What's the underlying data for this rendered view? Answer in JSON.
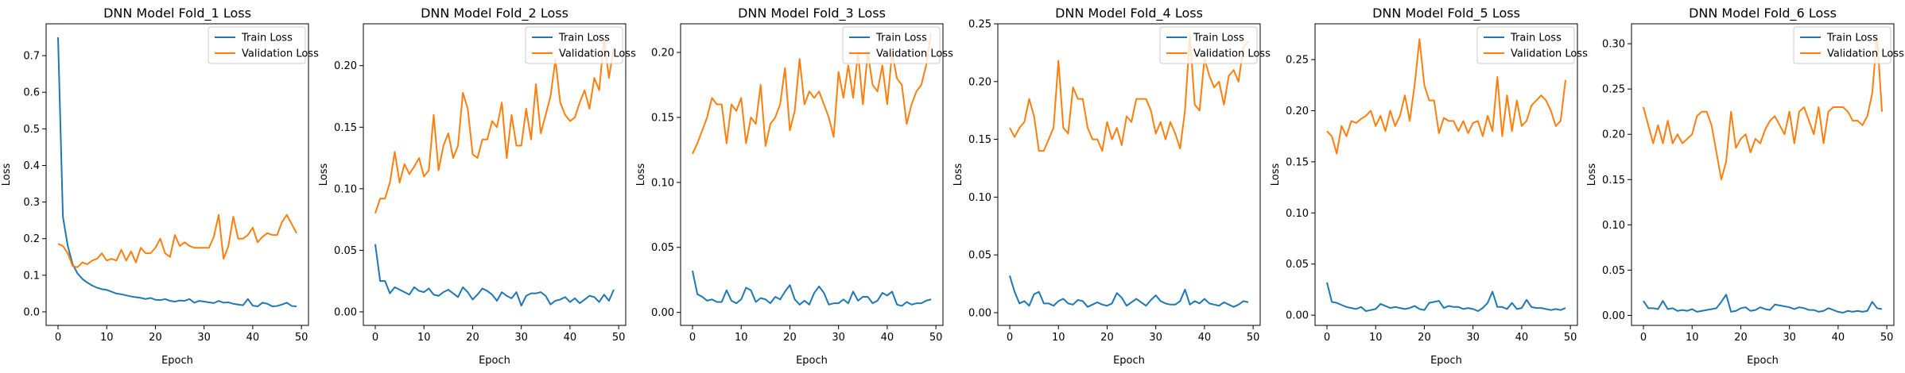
{
  "figure": {
    "background": "#ffffff"
  },
  "colors": {
    "train": "#1f77b4",
    "validation": "#ff7f0e",
    "axes": "#000000"
  },
  "chart_data": [
    {
      "type": "line",
      "title": "DNN Model Fold_1 Loss",
      "xlabel": "Epoch",
      "ylabel": "Loss",
      "xlim": [
        -2.45,
        51.45
      ],
      "ylim": [
        -0.037,
        0.787
      ],
      "xticks": [
        0,
        10,
        20,
        30,
        40,
        50
      ],
      "yticks": [
        0.0,
        0.1,
        0.2,
        0.3,
        0.4,
        0.5,
        0.6,
        0.7
      ],
      "ytick_labels": [
        "0.0",
        "0.1",
        "0.2",
        "0.3",
        "0.4",
        "0.5",
        "0.6",
        "0.7"
      ],
      "legend": "top-right",
      "grid": false,
      "series": [
        {
          "name": "Train Loss",
          "color": "#1f77b4",
          "values": [
            0.75,
            0.26,
            0.18,
            0.13,
            0.105,
            0.09,
            0.08,
            0.072,
            0.066,
            0.062,
            0.06,
            0.055,
            0.05,
            0.048,
            0.045,
            0.042,
            0.04,
            0.038,
            0.035,
            0.038,
            0.033,
            0.032,
            0.035,
            0.03,
            0.028,
            0.031,
            0.03,
            0.035,
            0.025,
            0.03,
            0.028,
            0.026,
            0.024,
            0.03,
            0.025,
            0.026,
            0.022,
            0.02,
            0.018,
            0.035,
            0.017,
            0.015,
            0.025,
            0.022,
            0.015,
            0.016,
            0.02,
            0.025,
            0.016,
            0.015
          ]
        },
        {
          "name": "Validation Loss",
          "color": "#ff7f0e",
          "values": [
            0.186,
            0.18,
            0.16,
            0.125,
            0.122,
            0.135,
            0.13,
            0.14,
            0.145,
            0.16,
            0.14,
            0.145,
            0.14,
            0.17,
            0.14,
            0.165,
            0.135,
            0.175,
            0.16,
            0.16,
            0.175,
            0.2,
            0.16,
            0.15,
            0.21,
            0.18,
            0.19,
            0.18,
            0.175,
            0.175,
            0.175,
            0.175,
            0.205,
            0.265,
            0.145,
            0.18,
            0.26,
            0.2,
            0.2,
            0.21,
            0.23,
            0.19,
            0.205,
            0.215,
            0.21,
            0.21,
            0.245,
            0.265,
            0.24,
            0.215
          ]
        }
      ]
    },
    {
      "type": "line",
      "title": "DNN Model Fold_2 Loss",
      "xlabel": "Epoch",
      "ylabel": "Loss",
      "xlim": [
        -2.45,
        51.45
      ],
      "ylim": [
        -0.011,
        0.234
      ],
      "xticks": [
        0,
        10,
        20,
        30,
        40,
        50
      ],
      "yticks": [
        0.0,
        0.05,
        0.1,
        0.15,
        0.2
      ],
      "ytick_labels": [
        "0.00",
        "0.05",
        "0.10",
        "0.15",
        "0.20"
      ],
      "legend": "top-right",
      "grid": false,
      "series": [
        {
          "name": "Train Loss",
          "color": "#1f77b4",
          "values": [
            0.055,
            0.025,
            0.025,
            0.015,
            0.02,
            0.018,
            0.016,
            0.014,
            0.02,
            0.017,
            0.016,
            0.019,
            0.014,
            0.013,
            0.016,
            0.018,
            0.015,
            0.012,
            0.02,
            0.016,
            0.01,
            0.014,
            0.019,
            0.017,
            0.014,
            0.009,
            0.016,
            0.013,
            0.011,
            0.016,
            0.005,
            0.013,
            0.015,
            0.015,
            0.016,
            0.013,
            0.006,
            0.009,
            0.01,
            0.012,
            0.008,
            0.011,
            0.007,
            0.01,
            0.013,
            0.012,
            0.008,
            0.014,
            0.009,
            0.018
          ]
        },
        {
          "name": "Validation Loss",
          "color": "#ff7f0e",
          "values": [
            0.08,
            0.092,
            0.092,
            0.105,
            0.13,
            0.105,
            0.12,
            0.112,
            0.118,
            0.125,
            0.11,
            0.115,
            0.16,
            0.115,
            0.135,
            0.145,
            0.125,
            0.135,
            0.178,
            0.165,
            0.128,
            0.125,
            0.14,
            0.14,
            0.155,
            0.15,
            0.17,
            0.125,
            0.16,
            0.135,
            0.135,
            0.165,
            0.14,
            0.185,
            0.145,
            0.16,
            0.175,
            0.205,
            0.17,
            0.16,
            0.155,
            0.158,
            0.17,
            0.18,
            0.165,
            0.19,
            0.18,
            0.222,
            0.19,
            0.215
          ]
        }
      ]
    },
    {
      "type": "line",
      "title": "DNN Model Fold_3 Loss",
      "xlabel": "Epoch",
      "ylabel": "Loss",
      "xlim": [
        -2.45,
        51.45
      ],
      "ylim": [
        -0.01,
        0.222
      ],
      "xticks": [
        0,
        10,
        20,
        30,
        40,
        50
      ],
      "yticks": [
        0.0,
        0.05,
        0.1,
        0.15,
        0.2
      ],
      "ytick_labels": [
        "0.00",
        "0.05",
        "0.10",
        "0.15",
        "0.20"
      ],
      "legend": "top-right",
      "grid": false,
      "series": [
        {
          "name": "Train Loss",
          "color": "#1f77b4",
          "values": [
            0.032,
            0.014,
            0.012,
            0.009,
            0.01,
            0.008,
            0.008,
            0.017,
            0.009,
            0.007,
            0.01,
            0.019,
            0.017,
            0.008,
            0.011,
            0.01,
            0.007,
            0.012,
            0.01,
            0.016,
            0.021,
            0.01,
            0.006,
            0.009,
            0.006,
            0.015,
            0.02,
            0.015,
            0.006,
            0.007,
            0.007,
            0.01,
            0.007,
            0.016,
            0.009,
            0.012,
            0.012,
            0.007,
            0.009,
            0.015,
            0.013,
            0.016,
            0.006,
            0.005,
            0.008,
            0.006,
            0.007,
            0.007,
            0.009,
            0.01
          ]
        },
        {
          "name": "Validation Loss",
          "color": "#ff7f0e",
          "values": [
            0.122,
            0.13,
            0.14,
            0.15,
            0.165,
            0.16,
            0.16,
            0.13,
            0.16,
            0.155,
            0.165,
            0.13,
            0.15,
            0.145,
            0.175,
            0.128,
            0.145,
            0.15,
            0.16,
            0.188,
            0.14,
            0.155,
            0.195,
            0.16,
            0.17,
            0.165,
            0.17,
            0.16,
            0.15,
            0.135,
            0.185,
            0.165,
            0.19,
            0.165,
            0.2,
            0.16,
            0.2,
            0.175,
            0.17,
            0.19,
            0.16,
            0.2,
            0.18,
            0.175,
            0.145,
            0.16,
            0.17,
            0.175,
            0.19,
            0.215
          ]
        }
      ]
    },
    {
      "type": "line",
      "title": "DNN Model Fold_4 Loss",
      "xlabel": "Epoch",
      "ylabel": "Loss",
      "xlim": [
        -2.45,
        51.45
      ],
      "ylim": [
        -0.011,
        0.25
      ],
      "xticks": [
        0,
        10,
        20,
        30,
        40,
        50
      ],
      "yticks": [
        0.0,
        0.05,
        0.1,
        0.15,
        0.2,
        0.25
      ],
      "ytick_labels": [
        "0.00",
        "0.05",
        "0.10",
        "0.15",
        "0.20",
        "0.25"
      ],
      "legend": "top-right",
      "grid": false,
      "series": [
        {
          "name": "Train Loss",
          "color": "#1f77b4",
          "values": [
            0.032,
            0.018,
            0.008,
            0.01,
            0.006,
            0.016,
            0.018,
            0.008,
            0.008,
            0.006,
            0.01,
            0.012,
            0.008,
            0.007,
            0.011,
            0.01,
            0.005,
            0.007,
            0.009,
            0.007,
            0.006,
            0.008,
            0.017,
            0.013,
            0.006,
            0.009,
            0.012,
            0.009,
            0.006,
            0.011,
            0.015,
            0.01,
            0.008,
            0.007,
            0.007,
            0.01,
            0.02,
            0.007,
            0.01,
            0.008,
            0.012,
            0.008,
            0.007,
            0.006,
            0.009,
            0.007,
            0.005,
            0.007,
            0.01,
            0.009
          ]
        },
        {
          "name": "Validation Loss",
          "color": "#ff7f0e",
          "values": [
            0.16,
            0.152,
            0.16,
            0.165,
            0.185,
            0.17,
            0.14,
            0.14,
            0.15,
            0.16,
            0.218,
            0.16,
            0.155,
            0.195,
            0.185,
            0.185,
            0.16,
            0.15,
            0.15,
            0.14,
            0.165,
            0.15,
            0.16,
            0.145,
            0.17,
            0.165,
            0.185,
            0.185,
            0.185,
            0.175,
            0.155,
            0.165,
            0.15,
            0.165,
            0.155,
            0.142,
            0.175,
            0.24,
            0.18,
            0.175,
            0.22,
            0.205,
            0.195,
            0.2,
            0.18,
            0.205,
            0.21,
            0.2,
            0.23,
            0.235
          ]
        }
      ]
    },
    {
      "type": "line",
      "title": "DNN Model Fold_5 Loss",
      "xlabel": "Epoch",
      "ylabel": "Loss",
      "xlim": [
        -2.45,
        51.45
      ],
      "ylim": [
        -0.01,
        0.285
      ],
      "xticks": [
        0,
        10,
        20,
        30,
        40,
        50
      ],
      "yticks": [
        0.0,
        0.05,
        0.1,
        0.15,
        0.2,
        0.25
      ],
      "ytick_labels": [
        "0.00",
        "0.05",
        "0.10",
        "0.15",
        "0.20",
        "0.25"
      ],
      "legend": "top-right",
      "grid": false,
      "series": [
        {
          "name": "Train Loss",
          "color": "#1f77b4",
          "values": [
            0.032,
            0.013,
            0.012,
            0.01,
            0.008,
            0.007,
            0.006,
            0.008,
            0.004,
            0.005,
            0.006,
            0.011,
            0.009,
            0.007,
            0.008,
            0.007,
            0.006,
            0.007,
            0.009,
            0.006,
            0.005,
            0.012,
            0.013,
            0.014,
            0.007,
            0.009,
            0.008,
            0.008,
            0.006,
            0.007,
            0.006,
            0.004,
            0.007,
            0.012,
            0.023,
            0.008,
            0.008,
            0.006,
            0.012,
            0.006,
            0.007,
            0.015,
            0.008,
            0.007,
            0.007,
            0.006,
            0.005,
            0.006,
            0.005,
            0.007
          ]
        },
        {
          "name": "Validation Loss",
          "color": "#ff7f0e",
          "values": [
            0.18,
            0.175,
            0.158,
            0.185,
            0.175,
            0.19,
            0.188,
            0.192,
            0.195,
            0.2,
            0.185,
            0.195,
            0.18,
            0.2,
            0.185,
            0.195,
            0.215,
            0.19,
            0.225,
            0.27,
            0.225,
            0.21,
            0.21,
            0.178,
            0.193,
            0.19,
            0.19,
            0.18,
            0.19,
            0.178,
            0.188,
            0.19,
            0.175,
            0.195,
            0.18,
            0.233,
            0.175,
            0.215,
            0.18,
            0.21,
            0.185,
            0.19,
            0.205,
            0.21,
            0.215,
            0.21,
            0.2,
            0.185,
            0.19,
            0.23
          ]
        }
      ]
    },
    {
      "type": "line",
      "title": "DNN Model Fold_6 Loss",
      "xlabel": "Epoch",
      "ylabel": "Loss",
      "xlim": [
        -2.45,
        51.45
      ],
      "ylim": [
        -0.011,
        0.322
      ],
      "xticks": [
        0,
        10,
        20,
        30,
        40,
        50
      ],
      "yticks": [
        0.0,
        0.05,
        0.1,
        0.15,
        0.2,
        0.25,
        0.3
      ],
      "ytick_labels": [
        "0.00",
        "0.05",
        "0.10",
        "0.15",
        "0.20",
        "0.25",
        "0.30"
      ],
      "legend": "top-right",
      "grid": false,
      "series": [
        {
          "name": "Train Loss",
          "color": "#1f77b4",
          "values": [
            0.016,
            0.008,
            0.008,
            0.007,
            0.016,
            0.007,
            0.008,
            0.005,
            0.006,
            0.005,
            0.007,
            0.004,
            0.005,
            0.006,
            0.007,
            0.008,
            0.015,
            0.023,
            0.004,
            0.005,
            0.008,
            0.009,
            0.005,
            0.006,
            0.009,
            0.007,
            0.006,
            0.012,
            0.011,
            0.01,
            0.009,
            0.007,
            0.009,
            0.008,
            0.006,
            0.006,
            0.004,
            0.005,
            0.008,
            0.006,
            0.004,
            0.003,
            0.005,
            0.004,
            0.005,
            0.004,
            0.005,
            0.015,
            0.008,
            0.007
          ]
        },
        {
          "name": "Validation Loss",
          "color": "#ff7f0e",
          "values": [
            0.23,
            0.21,
            0.19,
            0.21,
            0.19,
            0.215,
            0.19,
            0.2,
            0.19,
            0.195,
            0.2,
            0.22,
            0.225,
            0.225,
            0.21,
            0.18,
            0.15,
            0.17,
            0.225,
            0.185,
            0.195,
            0.2,
            0.18,
            0.195,
            0.19,
            0.205,
            0.215,
            0.22,
            0.21,
            0.2,
            0.225,
            0.19,
            0.225,
            0.23,
            0.215,
            0.2,
            0.23,
            0.19,
            0.225,
            0.23,
            0.23,
            0.23,
            0.225,
            0.215,
            0.215,
            0.21,
            0.22,
            0.245,
            0.31,
            0.225
          ]
        }
      ]
    }
  ]
}
